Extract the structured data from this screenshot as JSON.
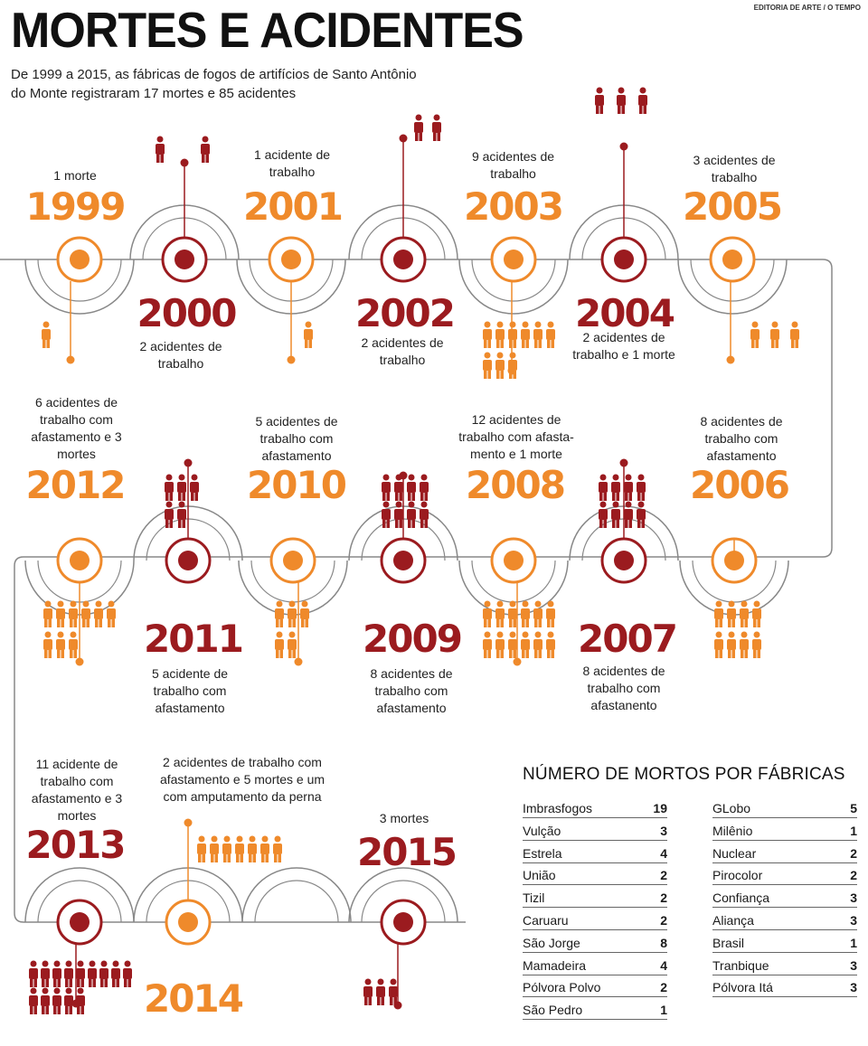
{
  "header": {
    "title": "MORTES E ACIDENTES",
    "credit": "EDITORIA DE ARTE / O TEMPO",
    "subtitle": "De 1999 a 2015, as fábricas de fogos de artifícios de Santo Antônio do Monte registraram 17 mortes e 85 acidentes"
  },
  "colors": {
    "orange": "#ef8a2b",
    "red": "#9b1b1f",
    "line": "#888888"
  },
  "timeline": [
    {
      "year": "1999",
      "text": "1 morte",
      "deaths": 1,
      "accidents": 0
    },
    {
      "year": "2000",
      "text": "2 acidentes de trabalho",
      "deaths": 0,
      "accidents": 2
    },
    {
      "year": "2001",
      "text": "1 acidente de trabalho",
      "deaths": 0,
      "accidents": 1
    },
    {
      "year": "2002",
      "text": "2 acidentes de trabalho",
      "deaths": 0,
      "accidents": 2
    },
    {
      "year": "2003",
      "text": "9 acidentes de trabalho",
      "deaths": 0,
      "accidents": 9
    },
    {
      "year": "2004",
      "text": "2 acidentes de trabalho e 1 morte",
      "deaths": 1,
      "accidents": 2
    },
    {
      "year": "2005",
      "text": "3 acidentes de trabalho",
      "deaths": 0,
      "accidents": 3
    },
    {
      "year": "2006",
      "text": "8 acidentes de trabalho com afastamento",
      "deaths": 0,
      "accidents": 8
    },
    {
      "year": "2007",
      "text": "8 acidentes de trabalho com afastanento",
      "deaths": 0,
      "accidents": 8
    },
    {
      "year": "2008",
      "text": "12 acidentes de trabalho com afasta-mento e 1 morte",
      "deaths": 1,
      "accidents": 12
    },
    {
      "year": "2009",
      "text": "8 acidentes de trabalho com afastamento",
      "deaths": 0,
      "accidents": 8
    },
    {
      "year": "2010",
      "text": "5 acidentes de trabalho com afastamento",
      "deaths": 0,
      "accidents": 5
    },
    {
      "year": "2011",
      "text": "5 acidente de trabalho com afastamento",
      "deaths": 0,
      "accidents": 5
    },
    {
      "year": "2012",
      "text": "6 acidentes de trabalho com afastamento e 3 mortes",
      "deaths": 3,
      "accidents": 6
    },
    {
      "year": "2013",
      "text": "11 acidente de trabalho com afastamento e 3 mortes",
      "deaths": 3,
      "accidents": 11
    },
    {
      "year": "2014",
      "text": "2 acidentes de trabalho com afastamento e 5 mortes e um com amputamento da perna",
      "deaths": 5,
      "accidents": 2
    },
    {
      "year": "2015",
      "text": "3 mortes",
      "deaths": 3,
      "accidents": 0
    }
  ],
  "table": {
    "title": "NÚMERO DE MORTOS POR FÁBRICAS",
    "left": [
      {
        "name": "Imbrasfogos",
        "value": "19"
      },
      {
        "name": "Vulção",
        "value": "3"
      },
      {
        "name": "Estrela",
        "value": "4"
      },
      {
        "name": "União",
        "value": "2"
      },
      {
        "name": "Tizil",
        "value": "2"
      },
      {
        "name": "Caruaru",
        "value": "2"
      },
      {
        "name": "São Jorge",
        "value": "8"
      },
      {
        "name": "Mamadeira",
        "value": "4"
      },
      {
        "name": "Pólvora Polvo",
        "value": "2"
      },
      {
        "name": "São Pedro",
        "value": "1"
      }
    ],
    "right": [
      {
        "name": "GLobo",
        "value": "5"
      },
      {
        "name": "Milênio",
        "value": "1"
      },
      {
        "name": "Nuclear",
        "value": "2"
      },
      {
        "name": "Pirocolor",
        "value": "2"
      },
      {
        "name": "Confiança",
        "value": "3"
      },
      {
        "name": "Aliança",
        "value": "3"
      },
      {
        "name": "Brasil",
        "value": "1"
      },
      {
        "name": "Tranbique",
        "value": "3"
      },
      {
        "name": "Pólvora Itá",
        "value": "3"
      }
    ]
  }
}
